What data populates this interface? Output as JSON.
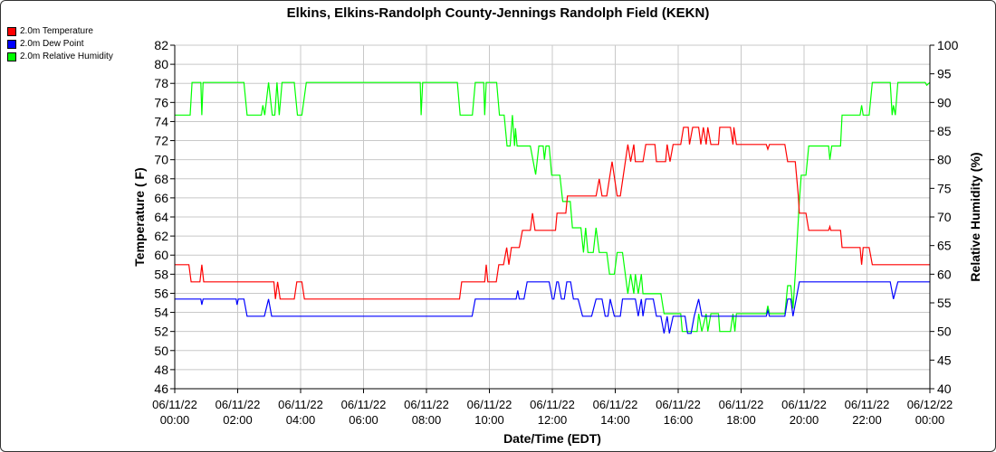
{
  "chart_data": {
    "type": "line",
    "title": "Elkins, Elkins-Randolph County-Jennings Randolph Field (KEKN)",
    "xlabel": "Date/Time (EDT)",
    "ylabel": "Temperature ( F)",
    "y2label": "Relative Humidity (%)",
    "xlim_hours": [
      0,
      24
    ],
    "ylim": [
      46,
      82
    ],
    "y2lim": [
      40,
      100
    ],
    "grid": true,
    "legend_position": "top-left-outside",
    "x_ticks": [
      {
        "hour": 0,
        "date": "06/11/22",
        "time": "00:00"
      },
      {
        "hour": 2,
        "date": "06/11/22",
        "time": "02:00"
      },
      {
        "hour": 4,
        "date": "06/11/22",
        "time": "04:00"
      },
      {
        "hour": 6,
        "date": "06/11/22",
        "time": "06:00"
      },
      {
        "hour": 8,
        "date": "06/11/22",
        "time": "08:00"
      },
      {
        "hour": 10,
        "date": "06/11/22",
        "time": "10:00"
      },
      {
        "hour": 12,
        "date": "06/11/22",
        "time": "12:00"
      },
      {
        "hour": 14,
        "date": "06/11/22",
        "time": "14:00"
      },
      {
        "hour": 16,
        "date": "06/11/22",
        "time": "16:00"
      },
      {
        "hour": 18,
        "date": "06/11/22",
        "time": "18:00"
      },
      {
        "hour": 20,
        "date": "06/11/22",
        "time": "20:00"
      },
      {
        "hour": 22,
        "date": "06/11/22",
        "time": "22:00"
      },
      {
        "hour": 24,
        "date": "06/12/22",
        "time": "00:00"
      }
    ],
    "y_ticks": [
      "46",
      "48",
      "50",
      "52",
      "54",
      "56",
      "58",
      "60",
      "62",
      "64",
      "66",
      "68",
      "70",
      "72",
      "74",
      "76",
      "78",
      "80",
      "82"
    ],
    "y2_ticks": [
      "40",
      "45",
      "50",
      "55",
      "60",
      "65",
      "70",
      "75",
      "80",
      "85",
      "90",
      "95",
      "100"
    ],
    "series": [
      {
        "name": "2.0m Temperature",
        "color": "#ff0000",
        "axis": "left",
        "points": [
          [
            0,
            59
          ],
          [
            0.45,
            59
          ],
          [
            0.52,
            57.2
          ],
          [
            0.8,
            57.2
          ],
          [
            0.86,
            59
          ],
          [
            0.92,
            57.2
          ],
          [
            2.78,
            57.2
          ],
          [
            3.15,
            57.2
          ],
          [
            3.2,
            55.4
          ],
          [
            3.27,
            57.2
          ],
          [
            3.35,
            55.4
          ],
          [
            3.8,
            55.4
          ],
          [
            3.88,
            57.2
          ],
          [
            4.04,
            57.2
          ],
          [
            4.12,
            55.4
          ],
          [
            9.05,
            55.4
          ],
          [
            9.12,
            57.2
          ],
          [
            9.85,
            57.2
          ],
          [
            9.9,
            59
          ],
          [
            9.95,
            57.2
          ],
          [
            10.22,
            57.2
          ],
          [
            10.3,
            59
          ],
          [
            10.45,
            59
          ],
          [
            10.55,
            60.8
          ],
          [
            10.62,
            59
          ],
          [
            10.7,
            60.8
          ],
          [
            10.95,
            60.8
          ],
          [
            11.05,
            62.6
          ],
          [
            11.3,
            62.6
          ],
          [
            11.37,
            64.4
          ],
          [
            11.45,
            62.6
          ],
          [
            12.1,
            62.6
          ],
          [
            12.15,
            64.4
          ],
          [
            12.43,
            64.4
          ],
          [
            12.48,
            66.2
          ],
          [
            13.39,
            66.2
          ],
          [
            13.49,
            68
          ],
          [
            13.58,
            66.2
          ],
          [
            13.73,
            66.2
          ],
          [
            13.9,
            69.8
          ],
          [
            14.06,
            66.2
          ],
          [
            14.16,
            66.2
          ],
          [
            14.4,
            71.6
          ],
          [
            14.49,
            69.8
          ],
          [
            14.59,
            71.6
          ],
          [
            14.64,
            69.8
          ],
          [
            14.88,
            69.8
          ],
          [
            14.97,
            71.6
          ],
          [
            15.26,
            71.6
          ],
          [
            15.31,
            69.8
          ],
          [
            15.6,
            69.8
          ],
          [
            15.65,
            71.6
          ],
          [
            15.74,
            69.8
          ],
          [
            15.84,
            71.6
          ],
          [
            16.08,
            71.6
          ],
          [
            16.17,
            73.4
          ],
          [
            16.32,
            73.4
          ],
          [
            16.36,
            71.6
          ],
          [
            16.46,
            73.4
          ],
          [
            16.65,
            73.4
          ],
          [
            16.72,
            71.6
          ],
          [
            16.8,
            73.4
          ],
          [
            16.89,
            71.6
          ],
          [
            16.94,
            73.4
          ],
          [
            17.04,
            71.6
          ],
          [
            17.28,
            71.6
          ],
          [
            17.32,
            73.4
          ],
          [
            17.66,
            73.4
          ],
          [
            17.74,
            71.6
          ],
          [
            17.77,
            73.4
          ],
          [
            17.85,
            71.6
          ],
          [
            18.8,
            71.6
          ],
          [
            18.85,
            71.1
          ],
          [
            18.9,
            71.6
          ],
          [
            19.39,
            71.6
          ],
          [
            19.48,
            69.8
          ],
          [
            19.72,
            69.8
          ],
          [
            19.82,
            66.2
          ],
          [
            19.85,
            64.4
          ],
          [
            20.06,
            64.4
          ],
          [
            20.15,
            62.6
          ],
          [
            20.78,
            62.6
          ],
          [
            20.82,
            63.0
          ],
          [
            20.85,
            62.6
          ],
          [
            21.16,
            62.6
          ],
          [
            21.21,
            60.8
          ],
          [
            21.78,
            60.8
          ],
          [
            21.83,
            59
          ],
          [
            21.88,
            60.8
          ],
          [
            22.07,
            60.8
          ],
          [
            22.17,
            59
          ],
          [
            24,
            59
          ]
        ]
      },
      {
        "name": "2.0m Dew Point",
        "color": "#0000ff",
        "axis": "left",
        "points": [
          [
            0,
            55.4
          ],
          [
            0.83,
            55.4
          ],
          [
            0.86,
            54.8
          ],
          [
            0.9,
            55.4
          ],
          [
            1.95,
            55.4
          ],
          [
            1.98,
            54.8
          ],
          [
            2.02,
            55.4
          ],
          [
            2.2,
            55.4
          ],
          [
            2.3,
            53.6
          ],
          [
            2.85,
            53.6
          ],
          [
            2.98,
            55.4
          ],
          [
            3.08,
            53.6
          ],
          [
            9.45,
            53.6
          ],
          [
            9.55,
            55.4
          ],
          [
            10.85,
            55.4
          ],
          [
            10.9,
            56.3
          ],
          [
            10.95,
            55.4
          ],
          [
            11.1,
            55.4
          ],
          [
            11.2,
            57.2
          ],
          [
            11.9,
            57.2
          ],
          [
            12.0,
            55.4
          ],
          [
            12.05,
            55.4
          ],
          [
            12.14,
            57.2
          ],
          [
            12.19,
            57.2
          ],
          [
            12.29,
            55.4
          ],
          [
            12.38,
            55.4
          ],
          [
            12.46,
            57.2
          ],
          [
            12.58,
            57.2
          ],
          [
            12.67,
            55.4
          ],
          [
            12.82,
            55.4
          ],
          [
            12.96,
            53.6
          ],
          [
            13.25,
            53.6
          ],
          [
            13.39,
            55.4
          ],
          [
            13.58,
            55.4
          ],
          [
            13.68,
            53.6
          ],
          [
            13.77,
            53.6
          ],
          [
            13.84,
            55.4
          ],
          [
            13.97,
            53.6
          ],
          [
            14.16,
            53.6
          ],
          [
            14.23,
            55.4
          ],
          [
            14.64,
            55.4
          ],
          [
            14.73,
            53.6
          ],
          [
            14.83,
            55.4
          ],
          [
            14.88,
            53.6
          ],
          [
            14.97,
            55.4
          ],
          [
            15.21,
            55.4
          ],
          [
            15.31,
            53.6
          ],
          [
            15.45,
            53.6
          ],
          [
            15.55,
            51.8
          ],
          [
            15.65,
            53.6
          ],
          [
            15.72,
            51.8
          ],
          [
            15.84,
            53.6
          ],
          [
            16.22,
            53.6
          ],
          [
            16.3,
            51.8
          ],
          [
            16.41,
            51.8
          ],
          [
            16.51,
            53.6
          ],
          [
            16.65,
            55.4
          ],
          [
            16.75,
            53.6
          ],
          [
            18.8,
            53.6
          ],
          [
            18.85,
            54.2
          ],
          [
            18.9,
            53.6
          ],
          [
            19.39,
            53.6
          ],
          [
            19.48,
            55.4
          ],
          [
            19.58,
            55.4
          ],
          [
            19.65,
            53.6
          ],
          [
            19.85,
            57.2
          ],
          [
            22.74,
            57.2
          ],
          [
            22.84,
            55.4
          ],
          [
            22.98,
            57.2
          ],
          [
            24,
            57.2
          ]
        ]
      },
      {
        "name": "2.0m Relative Humidity",
        "color": "#00ff00",
        "axis": "right",
        "points": [
          [
            0,
            87.8
          ],
          [
            0.49,
            87.8
          ],
          [
            0.55,
            93.5
          ],
          [
            0.83,
            93.5
          ],
          [
            0.86,
            87.8
          ],
          [
            0.9,
            93.5
          ],
          [
            2.2,
            93.5
          ],
          [
            2.3,
            87.8
          ],
          [
            2.75,
            87.8
          ],
          [
            2.8,
            89.5
          ],
          [
            2.86,
            87.8
          ],
          [
            2.98,
            93.5
          ],
          [
            3.1,
            87.8
          ],
          [
            3.18,
            87.8
          ],
          [
            3.25,
            93.5
          ],
          [
            3.32,
            87.8
          ],
          [
            3.41,
            93.5
          ],
          [
            3.8,
            93.5
          ],
          [
            3.9,
            87.8
          ],
          [
            4.04,
            87.8
          ],
          [
            4.18,
            93.5
          ],
          [
            7.8,
            93.5
          ],
          [
            7.83,
            87.8
          ],
          [
            7.88,
            93.5
          ],
          [
            8.98,
            93.5
          ],
          [
            9.07,
            87.8
          ],
          [
            9.46,
            87.8
          ],
          [
            9.55,
            93.5
          ],
          [
            9.82,
            93.5
          ],
          [
            9.85,
            87.8
          ],
          [
            9.9,
            93.5
          ],
          [
            10.23,
            93.5
          ],
          [
            10.32,
            87.8
          ],
          [
            10.47,
            87.8
          ],
          [
            10.56,
            82.4
          ],
          [
            10.66,
            82.4
          ],
          [
            10.73,
            87.8
          ],
          [
            10.8,
            82.4
          ],
          [
            10.83,
            85.5
          ],
          [
            10.88,
            82.4
          ],
          [
            11.3,
            82.4
          ],
          [
            11.47,
            77.4
          ],
          [
            11.57,
            82.4
          ],
          [
            11.71,
            82.4
          ],
          [
            11.75,
            80
          ],
          [
            11.8,
            82.4
          ],
          [
            11.9,
            82.4
          ],
          [
            11.98,
            77.3
          ],
          [
            12.24,
            77.3
          ],
          [
            12.33,
            72.7
          ],
          [
            12.57,
            72.7
          ],
          [
            12.64,
            68.1
          ],
          [
            12.91,
            68.1
          ],
          [
            12.99,
            63.8
          ],
          [
            13.06,
            68.1
          ],
          [
            13.13,
            63.8
          ],
          [
            13.3,
            63.8
          ],
          [
            13.39,
            68.1
          ],
          [
            13.49,
            63.8
          ],
          [
            13.73,
            63.8
          ],
          [
            13.82,
            60
          ],
          [
            13.97,
            60
          ],
          [
            14.06,
            63.8
          ],
          [
            14.23,
            63.8
          ],
          [
            14.4,
            56.6
          ],
          [
            14.49,
            60
          ],
          [
            14.59,
            56.6
          ],
          [
            14.64,
            60
          ],
          [
            14.73,
            56.6
          ],
          [
            14.83,
            60
          ],
          [
            14.88,
            56.6
          ],
          [
            15.45,
            56.6
          ],
          [
            15.55,
            53.1
          ],
          [
            16.08,
            53.1
          ],
          [
            16.13,
            50
          ],
          [
            16.6,
            50
          ],
          [
            16.65,
            53.1
          ],
          [
            16.75,
            50
          ],
          [
            16.89,
            53.1
          ],
          [
            16.94,
            50
          ],
          [
            17.04,
            53.1
          ],
          [
            17.28,
            53.1
          ],
          [
            17.32,
            50
          ],
          [
            17.66,
            50
          ],
          [
            17.74,
            53.1
          ],
          [
            17.8,
            50
          ],
          [
            17.85,
            53.1
          ],
          [
            18.8,
            53.1
          ],
          [
            18.85,
            54.5
          ],
          [
            18.9,
            53.1
          ],
          [
            19.39,
            53.1
          ],
          [
            19.48,
            58
          ],
          [
            19.58,
            58
          ],
          [
            19.65,
            54
          ],
          [
            19.72,
            60
          ],
          [
            19.85,
            72.7
          ],
          [
            19.91,
            77.3
          ],
          [
            20.06,
            77.3
          ],
          [
            20.15,
            82.4
          ],
          [
            20.78,
            82.4
          ],
          [
            20.82,
            80
          ],
          [
            20.88,
            82.4
          ],
          [
            21.16,
            82.4
          ],
          [
            21.21,
            87.8
          ],
          [
            21.78,
            87.8
          ],
          [
            21.83,
            89.5
          ],
          [
            21.88,
            87.8
          ],
          [
            22.07,
            87.8
          ],
          [
            22.17,
            93.5
          ],
          [
            22.74,
            93.5
          ],
          [
            22.8,
            87.8
          ],
          [
            22.84,
            89.5
          ],
          [
            22.9,
            87.8
          ],
          [
            22.98,
            93.5
          ],
          [
            23.85,
            93.5
          ],
          [
            23.9,
            93
          ],
          [
            24,
            93.5
          ]
        ]
      }
    ]
  }
}
